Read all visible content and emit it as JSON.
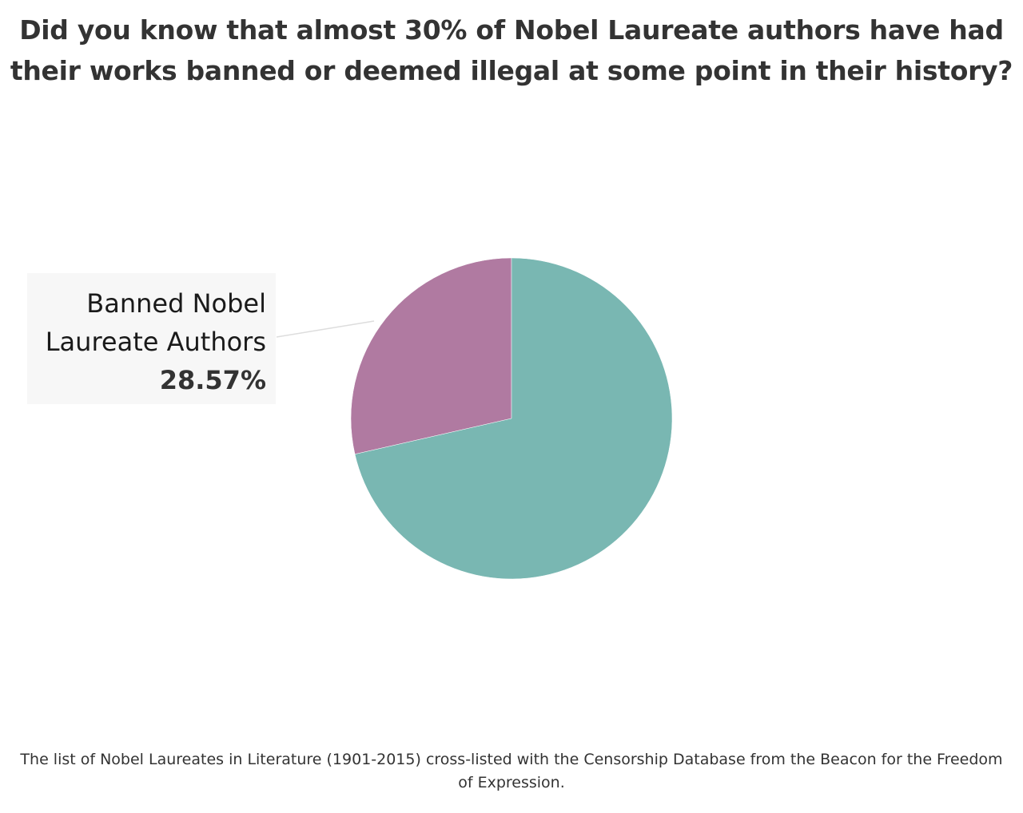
{
  "title": {
    "line1": "Did you know that almost 30% of Nobel Laureate authors have had",
    "line2": "their works banned or deemed illegal at some point in their history?"
  },
  "chart_data": {
    "type": "pie",
    "slices": [
      {
        "label": "Banned Nobel Laureate Authors",
        "value": 28.57,
        "color": "#b07aa1"
      },
      {
        "label": "",
        "value": 71.43,
        "color": "#79b7b2"
      }
    ],
    "annotations": [
      {
        "line1": "Banned Nobel",
        "line2": "Laureate Authors",
        "value_label": "28.57%"
      }
    ]
  },
  "footnote": {
    "line1": "The list of Nobel Laureates in Literature  (1901-2015)  cross-listed with the Censorship Database from the Beacon for the Freedom",
    "line2": "of Expression."
  }
}
